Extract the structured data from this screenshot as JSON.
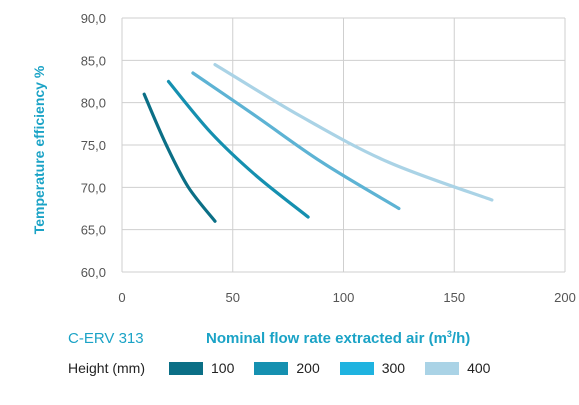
{
  "chart_data": {
    "type": "line",
    "title": "",
    "model": "C-ERV 313",
    "xlabel_main": "Nominal flow rate extracted air (m",
    "xlabel_sup": "3",
    "xlabel_end": "/h)",
    "ylabel": "Temperature efficiency %",
    "xlim": [
      0,
      200
    ],
    "ylim": [
      60,
      90
    ],
    "x_ticks": [
      "0",
      "50",
      "100",
      "150",
      "200"
    ],
    "y_ticks": [
      "60,0",
      "65,0",
      "70,0",
      "75,0",
      "80,0",
      "85,0",
      "90,0"
    ],
    "grid": true,
    "legend_title": "Height (mm)",
    "legend_position": "bottom",
    "series": [
      {
        "name": "100",
        "color": "#0b6f86",
        "x": [
          10,
          20,
          30,
          42
        ],
        "y": [
          81.0,
          75.0,
          70.0,
          66.0
        ]
      },
      {
        "name": "200",
        "color": "#1590b0",
        "x": [
          21,
          40,
          60,
          84
        ],
        "y": [
          82.5,
          76.5,
          71.5,
          66.5
        ]
      },
      {
        "name": "300",
        "color": "#5db3d4",
        "x": [
          32,
          60,
          90,
          125
        ],
        "y": [
          83.5,
          78.5,
          73.0,
          67.5
        ]
      },
      {
        "name": "400",
        "color": "#aad3e6",
        "x": [
          42,
          80,
          120,
          167
        ],
        "y": [
          84.5,
          78.5,
          73.0,
          68.5
        ]
      }
    ]
  }
}
